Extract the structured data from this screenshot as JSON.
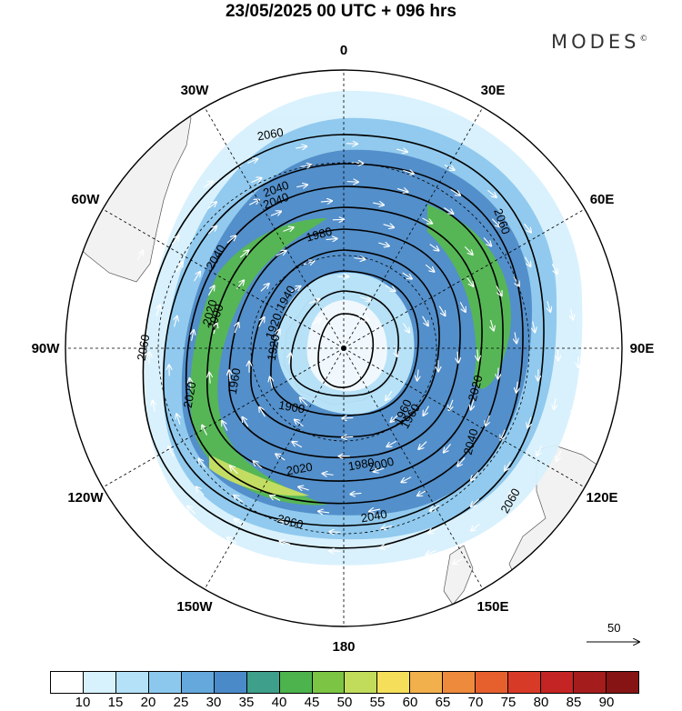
{
  "title": "23/05/2025  00 UTC  + 096 hrs",
  "logo": {
    "text": "MODES",
    "mark": "©"
  },
  "longitude_labels": [
    "0",
    "30E",
    "60E",
    "90E",
    "120E",
    "150E",
    "180",
    "150W",
    "120W",
    "90W",
    "60W",
    "30W"
  ],
  "contour_labels": [
    "2060",
    "2040",
    "1980",
    "1940",
    "1920",
    "1960",
    "1900",
    "2020",
    "2000",
    "2060",
    "2040",
    "2000",
    "2020",
    "2040",
    "2060",
    "1980",
    "1960",
    "2020",
    "2040",
    "2060",
    "2060",
    "2040",
    "2020",
    "1960",
    "1920"
  ],
  "vector_reference": {
    "label": "50"
  },
  "colorbar": {
    "ticks": [
      "10",
      "15",
      "20",
      "25",
      "30",
      "35",
      "40",
      "45",
      "50",
      "55",
      "60",
      "65",
      "70",
      "75",
      "80",
      "85",
      "90"
    ],
    "colors": [
      "#ffffff",
      "#d7f1fd",
      "#b4e1f7",
      "#8cc8ee",
      "#64a8dc",
      "#4a8ac8",
      "#3e9f8a",
      "#4db34d",
      "#7cc443",
      "#c0dc5a",
      "#f5df5a",
      "#f2b04c",
      "#ee8a3c",
      "#e6602e",
      "#d83a28",
      "#c42424",
      "#a51c1c",
      "#861414"
    ]
  }
}
